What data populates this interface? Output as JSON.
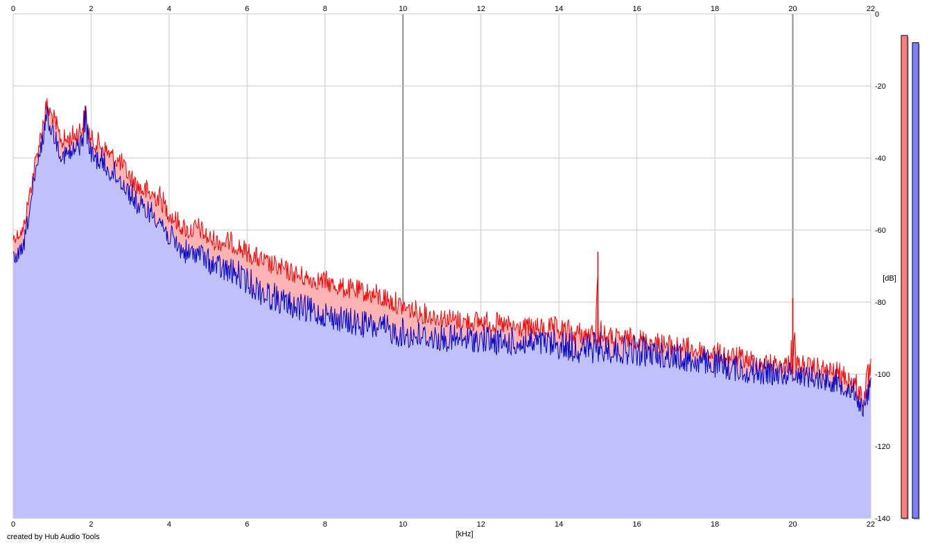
{
  "footer": {
    "credit": "created by Hub Audio Tools"
  },
  "colors": {
    "background": "#ffffff",
    "grid_minor": "#c8c8c8",
    "grid_major": "#8c8c8c",
    "channel1_line": "#ff0000",
    "channel1_fill": "#ffb4b4",
    "channel2_line": "#0000c8",
    "channel2_fill": "#c0c0fa",
    "meter_channel1": "#ff8080",
    "meter_channel2": "#8080ff"
  },
  "chart_data": {
    "type": "area",
    "title": "",
    "xlabel": "[kHz]",
    "ylabel": "[dB]",
    "xlim": [
      0,
      22
    ],
    "ylim": [
      -140,
      0
    ],
    "x_ticks": [
      "0",
      "2",
      "4",
      "6",
      "8",
      "10",
      "12",
      "14",
      "16",
      "18",
      "20",
      "22"
    ],
    "y_ticks": [
      "0",
      "-20",
      "-40",
      "-60",
      "-80",
      "-100",
      "-120",
      "-140"
    ],
    "grid": true,
    "x": [
      0,
      0.25,
      0.5,
      0.75,
      0.85,
      1,
      1.25,
      1.5,
      1.75,
      1.85,
      2,
      2.25,
      2.5,
      2.75,
      3,
      3.25,
      3.5,
      3.75,
      4,
      4.25,
      4.5,
      4.75,
      5,
      5.25,
      5.5,
      5.75,
      6,
      6.5,
      7,
      7.5,
      8,
      8.5,
      9,
      9.5,
      10,
      10.5,
      11,
      11.5,
      12,
      12.5,
      13,
      13.5,
      14,
      14.5,
      14.9,
      15,
      15.1,
      15.5,
      16,
      16.5,
      17,
      17.5,
      18,
      18.5,
      19,
      19.5,
      19.9,
      20,
      20.1,
      20.5,
      21,
      21.3,
      21.6,
      21.8,
      22
    ],
    "series": [
      {
        "values": [
          -60,
          -58,
          -42,
          -28,
          -22,
          -25,
          -32,
          -31,
          -28,
          -24,
          -32,
          -33,
          -36,
          -38,
          -42,
          -45,
          -46,
          -47,
          -52,
          -55,
          -57,
          -56,
          -59,
          -60,
          -60,
          -61,
          -63,
          -66,
          -68,
          -70,
          -71,
          -73,
          -74,
          -75,
          -78,
          -80,
          -81,
          -82,
          -82,
          -83,
          -84,
          -84,
          -84,
          -85,
          -86,
          -66,
          -86,
          -87,
          -87,
          -88,
          -89,
          -90,
          -91,
          -92,
          -93,
          -94,
          -94,
          -79,
          -94,
          -95,
          -96,
          -97,
          -99,
          -103,
          -93
        ],
        "lows": [
          -64,
          -62,
          -48,
          -34,
          -29,
          -31,
          -38,
          -37,
          -35,
          -33,
          -38,
          -39,
          -42,
          -44,
          -48,
          -51,
          -53,
          -54,
          -58,
          -61,
          -63,
          -62,
          -65,
          -66,
          -66,
          -67,
          -69,
          -72,
          -74,
          -76,
          -77,
          -79,
          -80,
          -82,
          -84,
          -86,
          -87,
          -88,
          -88,
          -89,
          -90,
          -90,
          -91,
          -92,
          -92,
          -92,
          -92,
          -93,
          -93,
          -94,
          -95,
          -96,
          -97,
          -98,
          -99,
          -100,
          -100,
          -100,
          -100,
          -101,
          -102,
          -103,
          -106,
          -110,
          -104
        ]
      },
      {
        "values": [
          -66,
          -63,
          -46,
          -32,
          -24,
          -29,
          -36,
          -35,
          -32,
          -23,
          -36,
          -37,
          -40,
          -42,
          -46,
          -50,
          -51,
          -53,
          -58,
          -61,
          -63,
          -62,
          -65,
          -66,
          -67,
          -68,
          -70,
          -73,
          -76,
          -78,
          -79,
          -81,
          -82,
          -83,
          -84,
          -85,
          -86,
          -86,
          -86,
          -87,
          -87,
          -87,
          -87,
          -88,
          -88,
          -88,
          -88,
          -89,
          -89,
          -90,
          -91,
          -92,
          -93,
          -94,
          -95,
          -96,
          -96,
          -95,
          -96,
          -97,
          -98,
          -99,
          -101,
          -107,
          -98
        ],
        "lows": [
          -70,
          -68,
          -52,
          -38,
          -31,
          -35,
          -42,
          -42,
          -39,
          -34,
          -42,
          -44,
          -47,
          -49,
          -53,
          -57,
          -58,
          -60,
          -65,
          -68,
          -70,
          -69,
          -72,
          -74,
          -75,
          -76,
          -78,
          -82,
          -84,
          -86,
          -87,
          -89,
          -90,
          -91,
          -93,
          -93,
          -94,
          -94,
          -94,
          -95,
          -95,
          -95,
          -96,
          -97,
          -97,
          -97,
          -97,
          -97,
          -98,
          -98,
          -99,
          -100,
          -101,
          -102,
          -103,
          -103,
          -103,
          -103,
          -103,
          -104,
          -105,
          -106,
          -108,
          -113,
          -106
        ]
      }
    ],
    "level_meters": [
      -6,
      -8
    ]
  }
}
